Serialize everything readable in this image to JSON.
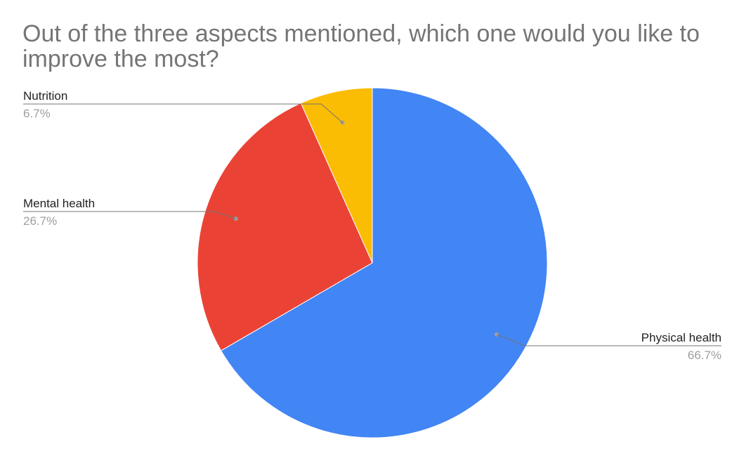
{
  "chart_data": {
    "type": "pie",
    "title": "Out of the three aspects mentioned, which one would you like to improve the most?",
    "slices": [
      {
        "label": "Physical health",
        "value": 66.7,
        "value_label": "66.7%",
        "color": "#4285F4"
      },
      {
        "label": "Mental health",
        "value": 26.7,
        "value_label": "26.7%",
        "color": "#EA4335"
      },
      {
        "label": "Nutrition",
        "value": 6.7,
        "value_label": "6.7%",
        "color": "#FBBC04"
      }
    ],
    "start_angle_deg": 0,
    "direction": "clockwise",
    "legend": "labels"
  }
}
